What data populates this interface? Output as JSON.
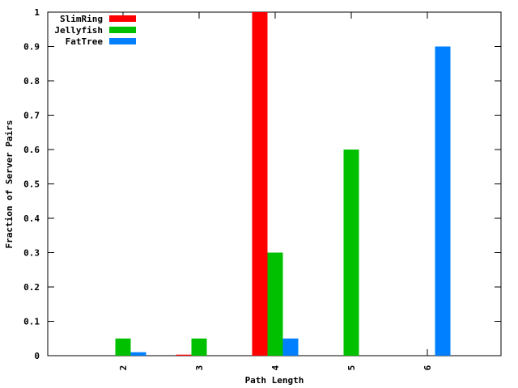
{
  "chart_data": {
    "type": "bar",
    "categories": [
      "2",
      "3",
      "4",
      "5",
      "6"
    ],
    "series": [
      {
        "name": "SlimRing",
        "color": "#ff0000",
        "values": [
          0,
          0.003,
          1.0,
          0,
          0
        ]
      },
      {
        "name": "Jellyfish",
        "color": "#00c000",
        "values": [
          0.05,
          0.05,
          0.3,
          0.6,
          0
        ]
      },
      {
        "name": "FatTree",
        "color": "#0080ff",
        "values": [
          0.01,
          0,
          0.05,
          0,
          0.9
        ]
      }
    ],
    "xlabel": "Path Length",
    "ylabel": "Fraction of Server Pairs",
    "ylim": [
      0,
      1
    ],
    "yticks": [
      "0",
      "0.1",
      "0.2",
      "0.3",
      "0.4",
      "0.5",
      "0.6",
      "0.7",
      "0.8",
      "0.9",
      "1"
    ],
    "grid": false,
    "legend_position": "top-left"
  }
}
